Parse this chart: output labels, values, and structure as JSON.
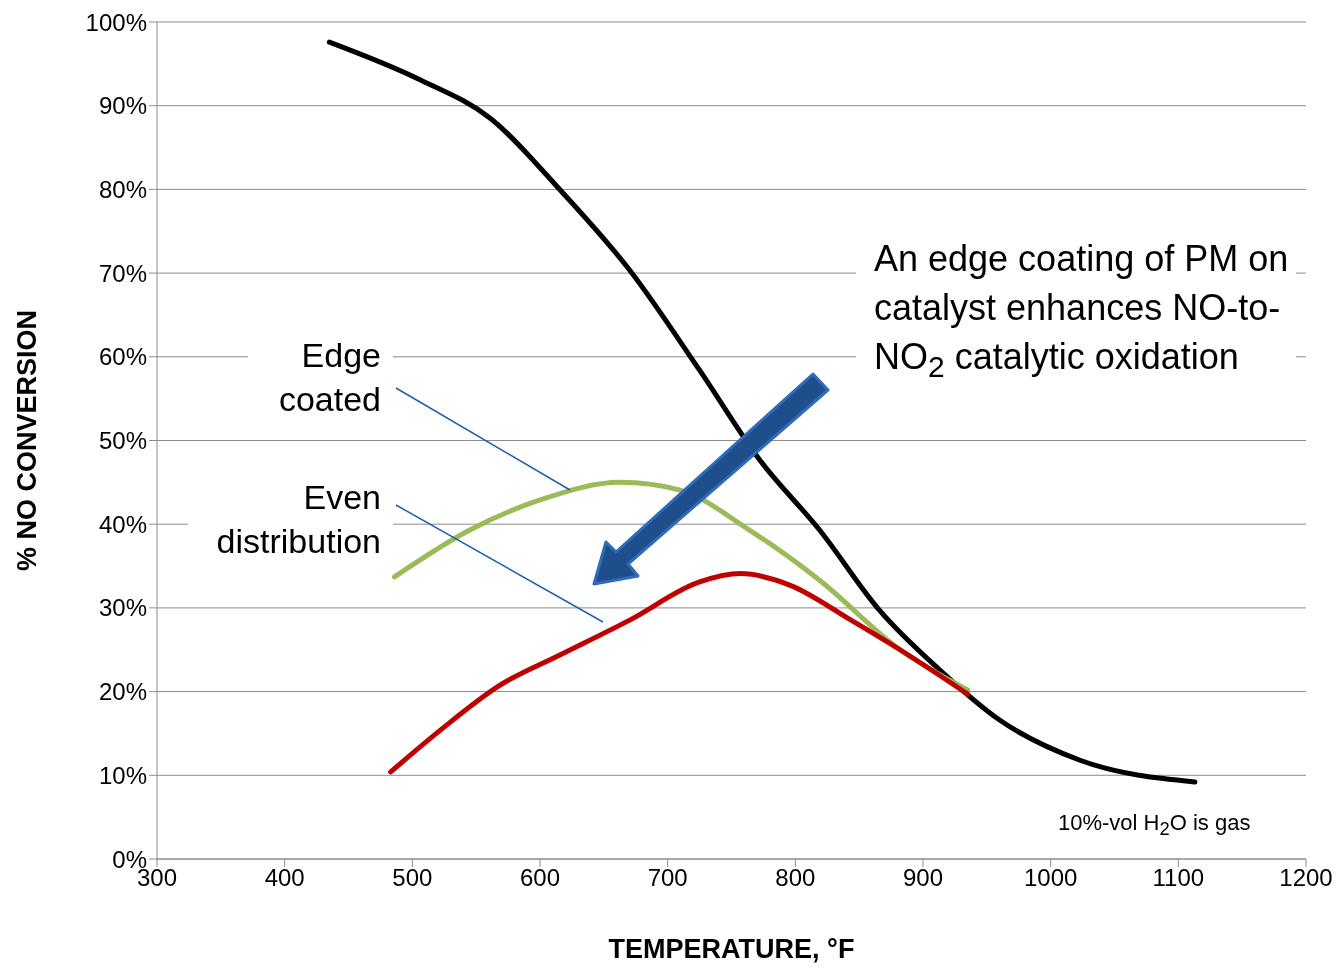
{
  "chart_data": {
    "type": "line",
    "xlabel": "TEMPERATURE, °F",
    "ylabel": "% NO CONVERSION",
    "xlim": [
      300,
      1200
    ],
    "xticks": [
      300,
      400,
      500,
      600,
      700,
      800,
      900,
      1000,
      1100,
      1200
    ],
    "ylim": [
      0,
      100
    ],
    "yticks": [
      {
        "value": 0,
        "label": "0%"
      },
      {
        "value": 10,
        "label": "10%"
      },
      {
        "value": 20,
        "label": "20%"
      },
      {
        "value": 30,
        "label": "30%"
      },
      {
        "value": 40,
        "label": "40%"
      },
      {
        "value": 50,
        "label": "50%"
      },
      {
        "value": 60,
        "label": "60%"
      },
      {
        "value": 70,
        "label": "70%"
      },
      {
        "value": 80,
        "label": "80%"
      },
      {
        "value": 90,
        "label": "90%"
      },
      {
        "value": 100,
        "label": "100%"
      }
    ],
    "grid": "y",
    "marker": "none",
    "line_style": "solid",
    "series": [
      {
        "color": "#000000",
        "x": [
          435,
          506,
          561,
          616,
          670,
          725,
          772,
          819,
          866,
          913,
          960,
          1023,
          1113
        ],
        "values": [
          97.6,
          93.1,
          88.5,
          79.9,
          70.4,
          58.4,
          47.7,
          39.3,
          29.7,
          22.6,
          16.6,
          11.8,
          9.2
        ]
      },
      {
        "name": "Edge coated",
        "color": "#9bbb59",
        "x": [
          486,
          545,
          600,
          663,
          709,
          764,
          819,
          882,
          935
        ],
        "values": [
          33.7,
          39.3,
          42.9,
          45.0,
          44.1,
          39.3,
          33.3,
          25.0,
          20.2
        ]
      },
      {
        "name": "Even distribution",
        "color": "#c00000",
        "x": [
          483,
          522,
          569,
          616,
          671,
          725,
          757,
          796,
          843,
          882,
          935
        ],
        "values": [
          10.4,
          15.4,
          20.8,
          24.4,
          28.6,
          33.1,
          34.1,
          32.7,
          28.6,
          25.0,
          19.7
        ]
      }
    ],
    "annotations": [
      "An edge coating of PM on catalyst enhances NO-to-NO$_{2}$ catalytic oxidation",
      "10%-vol H$_{2}$O is gas"
    ]
  }
}
